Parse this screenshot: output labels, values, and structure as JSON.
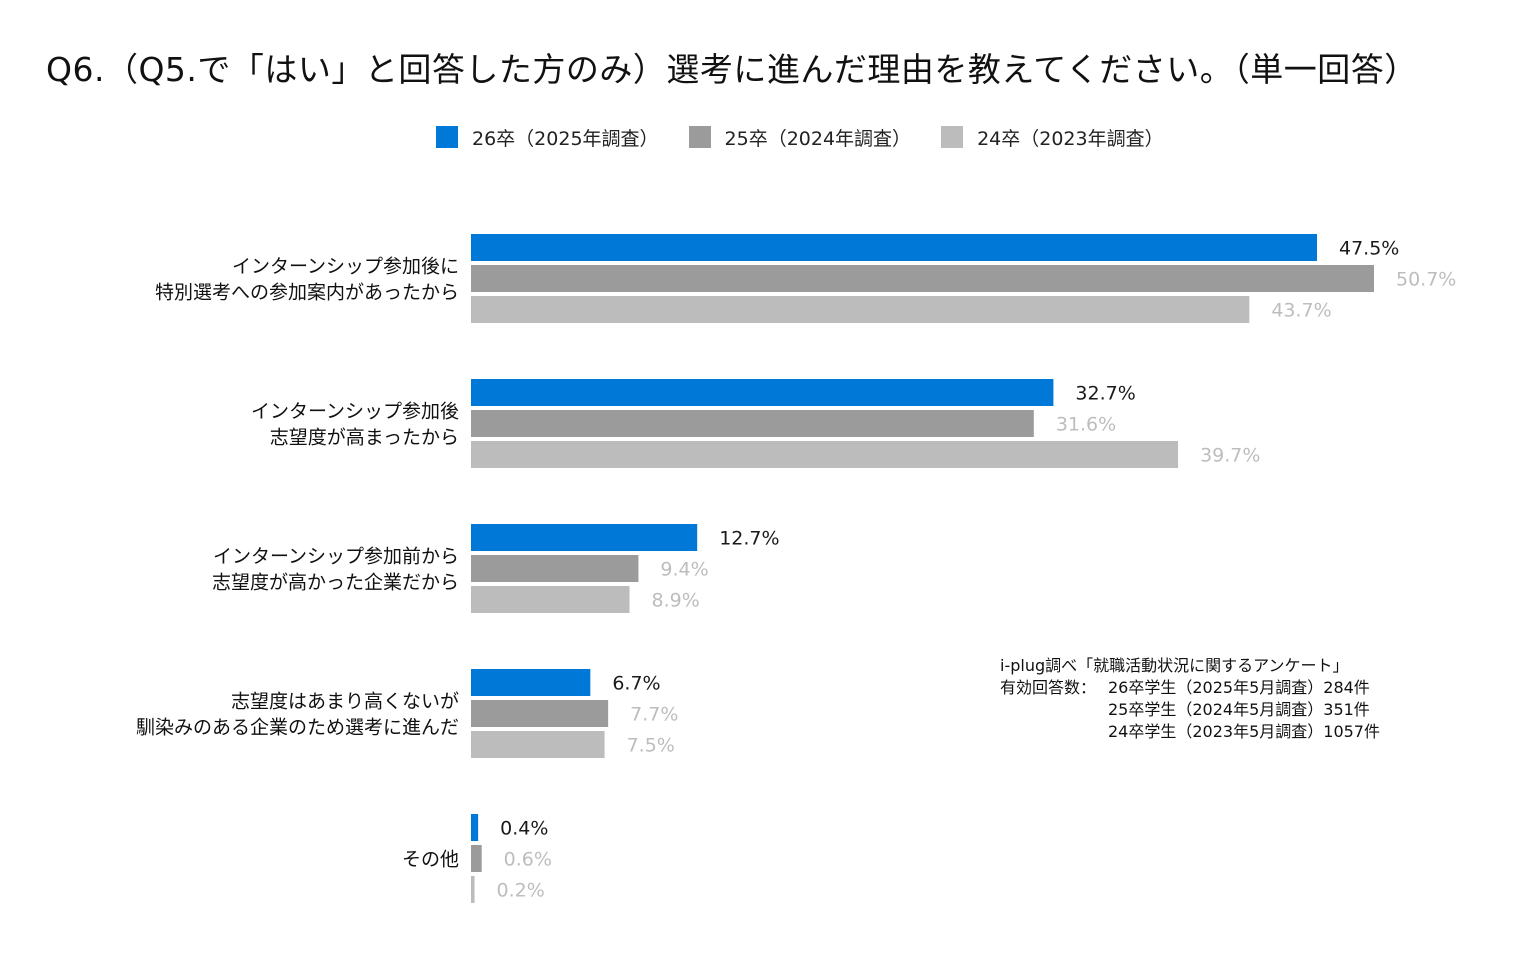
{
  "title": "Q6.（Q5.で「はい」と回答した方のみ）選考に進んだ理由を教えてください。（単一回答）",
  "chart_data": {
    "type": "bar",
    "orientation": "horizontal",
    "title": "Q6.（Q5.で「はい」と回答した方のみ）選考に進んだ理由を教えてください。（単一回答）",
    "categories": [
      [
        "インターンシップ参加後に",
        "特別選考への参加案内があったから"
      ],
      [
        "インターンシップ参加後",
        "志望度が高まったから"
      ],
      [
        "インターンシップ参加前から",
        "志望度が高かった企業だから"
      ],
      [
        "志望度はあまり高くないが",
        "馴染みのある企業のため選考に進んだ"
      ],
      [
        "その他"
      ]
    ],
    "series": [
      {
        "name": "26卒（2025年調査）",
        "color": "#0078d7",
        "label_color": "#1a1a1a",
        "values": [
          47.5,
          32.7,
          12.7,
          6.7,
          0.4
        ],
        "labels": [
          "47.5%",
          "32.7%",
          "12.7%",
          "6.7%",
          "0.4%"
        ]
      },
      {
        "name": "25卒（2024年調査）",
        "color": "#9b9b9b",
        "label_color": "#bdbdbd",
        "values": [
          50.7,
          31.6,
          9.4,
          7.7,
          0.6
        ],
        "labels": [
          "50.7%",
          "31.6%",
          "9.4%",
          "7.7%",
          "0.6%"
        ]
      },
      {
        "name": "24卒（2023年調査）",
        "color": "#bcbcbc",
        "label_color": "#bdbdbd",
        "values": [
          43.7,
          39.7,
          8.9,
          7.5,
          0.2
        ],
        "labels": [
          "43.7%",
          "39.7%",
          "8.9%",
          "7.5%",
          "0.2%"
        ]
      }
    ],
    "xlabel": "",
    "ylabel": "",
    "xlim": [
      0,
      60
    ],
    "grid": false,
    "legend": "top"
  },
  "legend": [
    {
      "label": "26卒（2025年調査）",
      "color": "#0078d7"
    },
    {
      "label": "25卒（2024年調査）",
      "color": "#9b9b9b"
    },
    {
      "label": "24卒（2023年調査）",
      "color": "#bcbcbc"
    }
  ],
  "note": {
    "source": "i-plug調べ「就職活動状況に関するアンケート」",
    "label": "有効回答数：",
    "rows": [
      "26卒学生（2025年5月調査）284件",
      "25卒学生（2024年5月調査）351件",
      "24卒学生（2023年5月調査）1057件"
    ]
  }
}
